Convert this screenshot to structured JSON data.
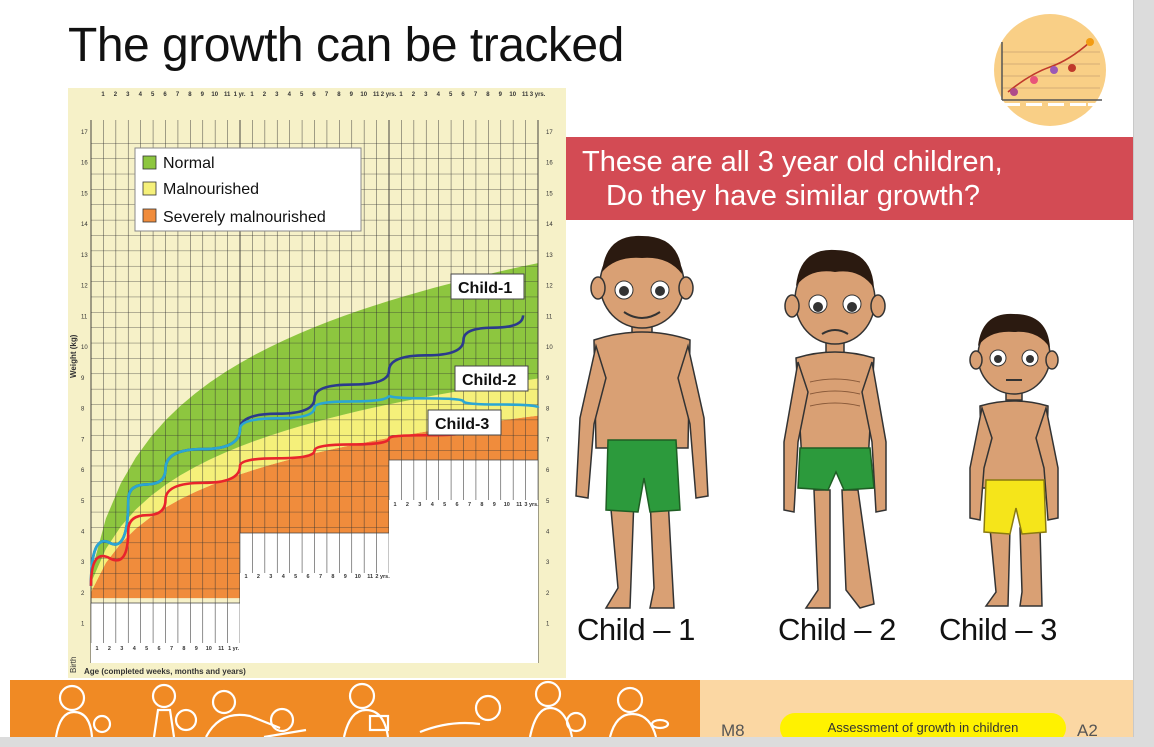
{
  "title": "The growth can be tracked",
  "chart_data": {
    "type": "line",
    "xlabel": "Age (completed weeks, months and years)",
    "ylabel": "Weight (kg)",
    "ylim": [
      0,
      17
    ],
    "legend": [
      {
        "name": "Normal",
        "color": "#8dc63f"
      },
      {
        "name": "Malnourished",
        "color": "#f5f07a"
      },
      {
        "name": "Severely malnourished",
        "color": "#f08c3c"
      }
    ],
    "y_ticks": [
      "1",
      "2",
      "3",
      "4",
      "5",
      "6",
      "7",
      "8",
      "9",
      "10",
      "11",
      "12",
      "13",
      "14",
      "15",
      "16",
      "17"
    ],
    "top_ticks": [
      "1",
      "2",
      "3",
      "4",
      "5",
      "6",
      "7",
      "8",
      "9",
      "10",
      "11",
      "1 yr.",
      "1",
      "2",
      "3",
      "4",
      "5",
      "6",
      "7",
      "8",
      "9",
      "10",
      "11",
      "2 yrs.",
      "1",
      "2",
      "3",
      "4",
      "5",
      "6",
      "7",
      "8",
      "9",
      "10",
      "11",
      "3 yrs."
    ],
    "series": [
      {
        "name": "Child-1",
        "color": "#2b3a8c",
        "x_years": [
          0,
          0.25,
          0.5,
          1,
          1.5,
          2,
          2.5,
          2.9
        ],
        "y_kg": [
          2.2,
          5,
          6,
          7.3,
          8.3,
          9.2,
          10.2,
          11
        ]
      },
      {
        "name": "Child-2",
        "color": "#2aa6d4",
        "x_years": [
          0,
          0.25,
          0.5,
          1,
          1.5,
          2,
          2.5,
          3
        ],
        "y_kg": [
          2.2,
          5,
          6,
          7.3,
          8,
          8.4,
          8.2,
          8
        ]
      },
      {
        "name": "Child-3",
        "color": "#e8242c",
        "x_years": [
          0,
          0.25,
          0.5,
          1,
          1.5,
          2,
          2.5,
          2.7
        ],
        "y_kg": [
          2.2,
          4,
          5,
          6.1,
          6.6,
          7,
          7.2,
          7.3
        ]
      }
    ],
    "corner_label": "Birth"
  },
  "banner": {
    "line1": "These are all 3 year old children,",
    "line2": "Do they have similar growth?"
  },
  "children": [
    {
      "label": "Child – 1",
      "shorts": "#2c9a3c",
      "mood": "happy"
    },
    {
      "label": "Child – 2",
      "shorts": "#2c9a3c",
      "mood": "sad"
    },
    {
      "label": "Child – 3",
      "shorts": "#f5e51a",
      "mood": "neutral"
    }
  ],
  "footer": {
    "module_left": "M8",
    "topic": "Assessment of growth in children",
    "module_right": "A2"
  }
}
